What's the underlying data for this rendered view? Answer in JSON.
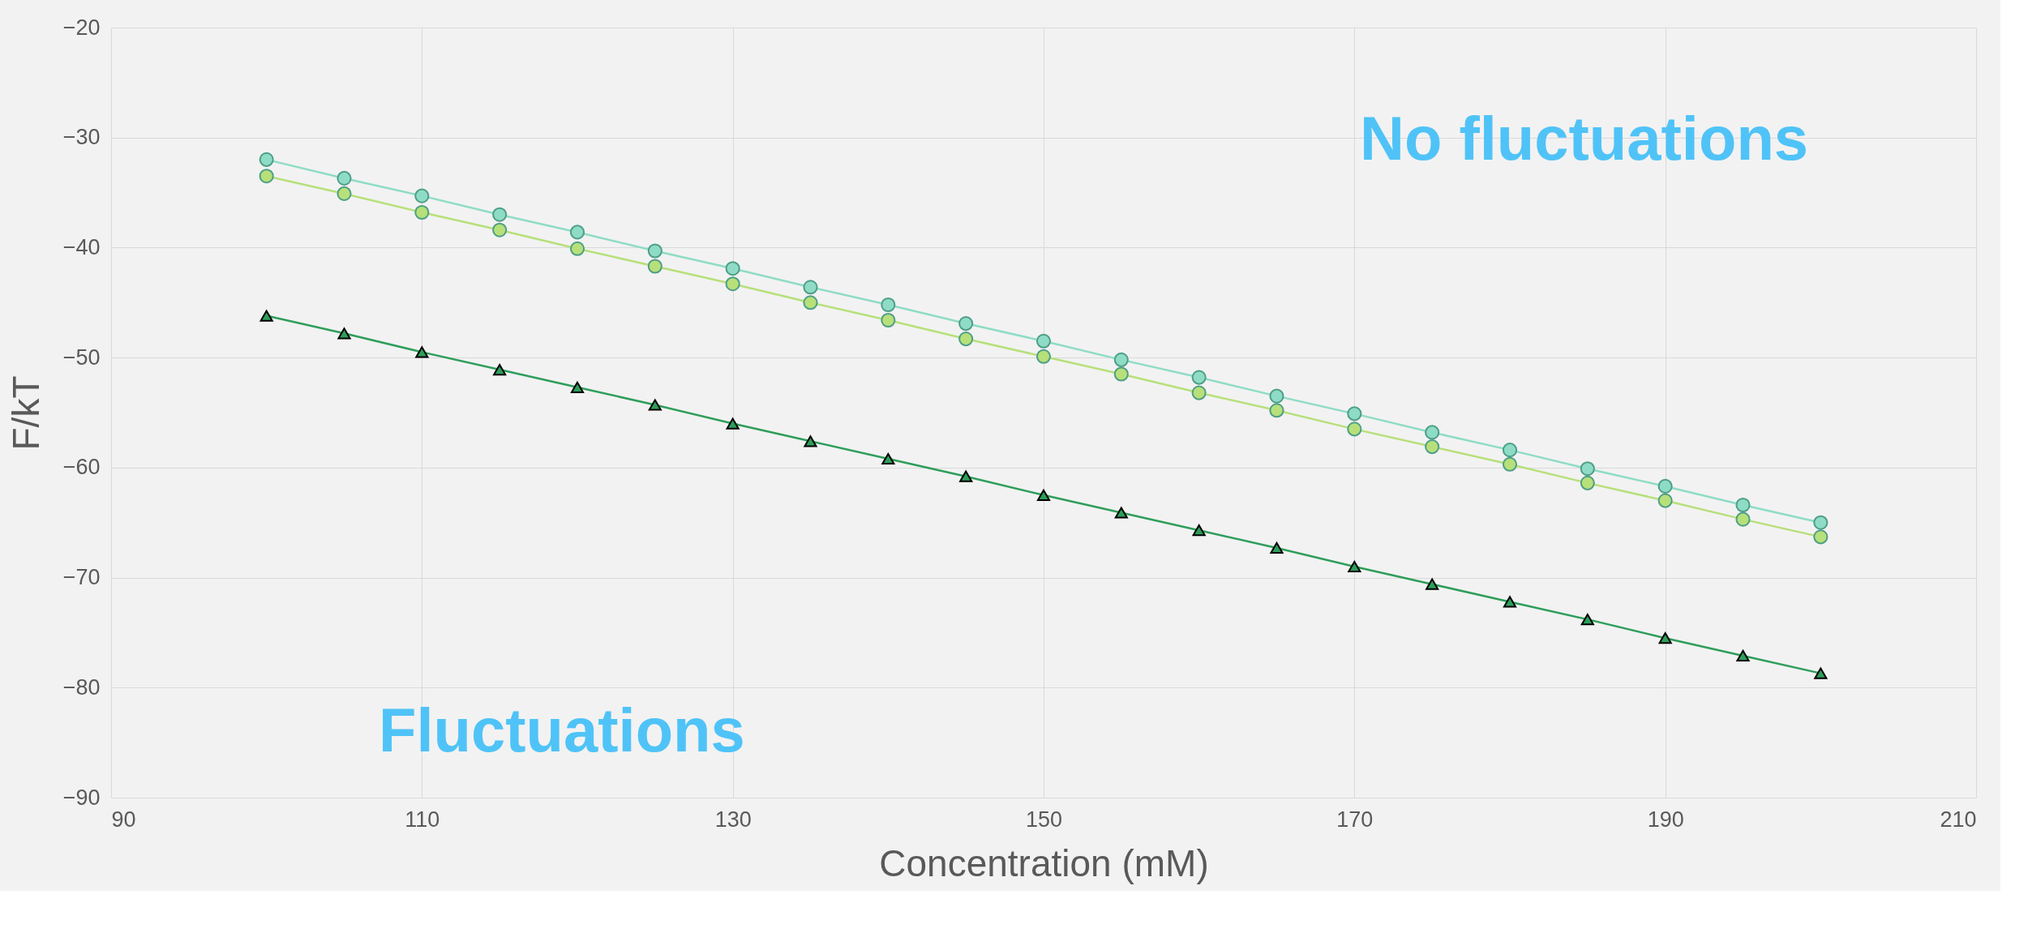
{
  "chart_data": {
    "type": "line",
    "xlabel": "Concentration (mM)",
    "ylabel": "F/kT",
    "x": [
      100,
      105,
      110,
      115,
      120,
      125,
      130,
      135,
      140,
      145,
      150,
      155,
      160,
      165,
      170,
      175,
      180,
      185,
      190,
      195,
      200
    ],
    "series": [
      {
        "color": "#8fdcc6",
        "marker": "circle",
        "values": [
          -32.0,
          -33.7,
          -35.3,
          -37.0,
          -38.6,
          -40.3,
          -41.9,
          -43.6,
          -45.2,
          -46.9,
          -48.5,
          -50.2,
          -51.8,
          -53.5,
          -55.1,
          -56.8,
          -58.4,
          -60.1,
          -61.7,
          -63.4,
          -65.0
        ]
      },
      {
        "color": "#b7e07a",
        "marker": "circle",
        "values": [
          -33.5,
          -35.1,
          -36.8,
          -38.4,
          -40.1,
          -41.7,
          -43.3,
          -45.0,
          -46.6,
          -48.3,
          -49.9,
          -51.5,
          -53.2,
          -54.8,
          -56.5,
          -58.1,
          -59.7,
          -61.4,
          -63.0,
          -64.7,
          -66.3
        ]
      },
      {
        "color": "#2e9e5a",
        "marker": "triangle",
        "values": [
          -46.2,
          -47.8,
          -49.5,
          -51.1,
          -52.7,
          -54.3,
          -56.0,
          -57.6,
          -59.2,
          -60.8,
          -62.5,
          -64.1,
          -65.7,
          -67.3,
          -69.0,
          -70.6,
          -72.2,
          -73.8,
          -75.5,
          -77.1,
          -78.7
        ]
      }
    ],
    "xlim": [
      90,
      210
    ],
    "xticks": [
      90,
      110,
      130,
      150,
      170,
      190,
      210
    ],
    "ylim": [
      -90,
      -20
    ],
    "yticks": [
      -90,
      -80,
      -70,
      -60,
      -50,
      -40,
      -30,
      -20
    ],
    "grid": true,
    "line_style": "solid",
    "annotations": [
      "No fluctuations",
      "Fluctuations"
    ]
  }
}
